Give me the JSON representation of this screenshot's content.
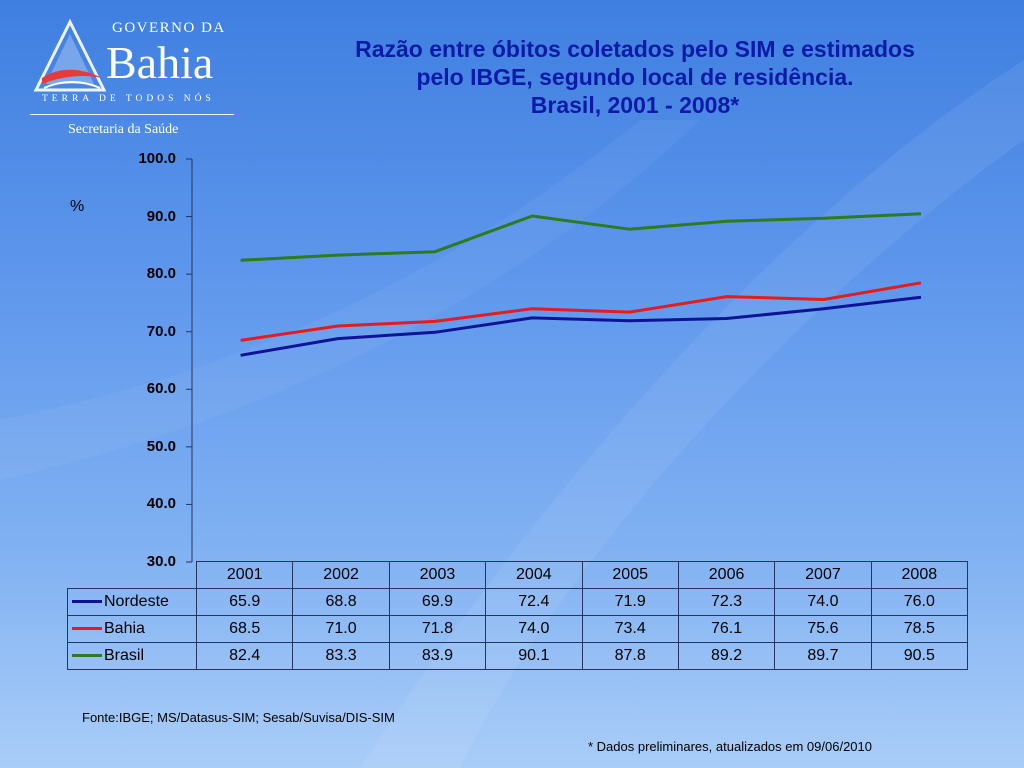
{
  "logo": {
    "line1": "GOVERNO DA",
    "line2": "Bahia",
    "line3": "TERRA DE TODOS NÓS",
    "line4": "Secretaria da Saúde"
  },
  "colors": {
    "title": "#0c1aa8",
    "nordeste": "#0f1496",
    "bahia": "#e41c1c",
    "brasil": "#2d7a1f"
  },
  "chart_data": {
    "type": "line",
    "title_lines": [
      "Razão entre óbitos coletados pelo SIM e estimados",
      "pelo IBGE,  segundo local de residência.",
      "Brasil, 2001 - 2008*"
    ],
    "ylabel": "%",
    "ylim": [
      30,
      100
    ],
    "yticks": [
      "100.0",
      "90.0",
      "80.0",
      "70.0",
      "60.0",
      "50.0",
      "40.0",
      "30.0"
    ],
    "categories": [
      "2001",
      "2002",
      "2003",
      "2004",
      "2005",
      "2006",
      "2007",
      "2008"
    ],
    "series": [
      {
        "name": "Nordeste",
        "values": [
          65.9,
          68.8,
          69.9,
          72.4,
          71.9,
          72.3,
          74.0,
          76.0
        ],
        "labels": [
          "65.9",
          "68.8",
          "69.9",
          "72.4",
          "71.9",
          "72.3",
          "74.0",
          "76.0"
        ]
      },
      {
        "name": "Bahia",
        "values": [
          68.5,
          71.0,
          71.8,
          74.0,
          73.4,
          76.1,
          75.6,
          78.5
        ],
        "labels": [
          "68.5",
          "71.0",
          "71.8",
          "74.0",
          "73.4",
          "76.1",
          "75.6",
          "78.5"
        ]
      },
      {
        "name": "Brasil",
        "values": [
          82.4,
          83.3,
          83.9,
          90.1,
          87.8,
          89.2,
          89.7,
          90.5
        ],
        "labels": [
          "82.4",
          "83.3",
          "83.9",
          "90.1",
          "87.8",
          "89.2",
          "89.7",
          "90.5"
        ]
      }
    ],
    "legend": "data-table"
  },
  "footer": {
    "source": "Fonte:IBGE; MS/Datasus-SIM; Sesab/Suvisa/DIS-SIM",
    "note": "* Dados preliminares,  atualizados em 09/06/2010"
  }
}
